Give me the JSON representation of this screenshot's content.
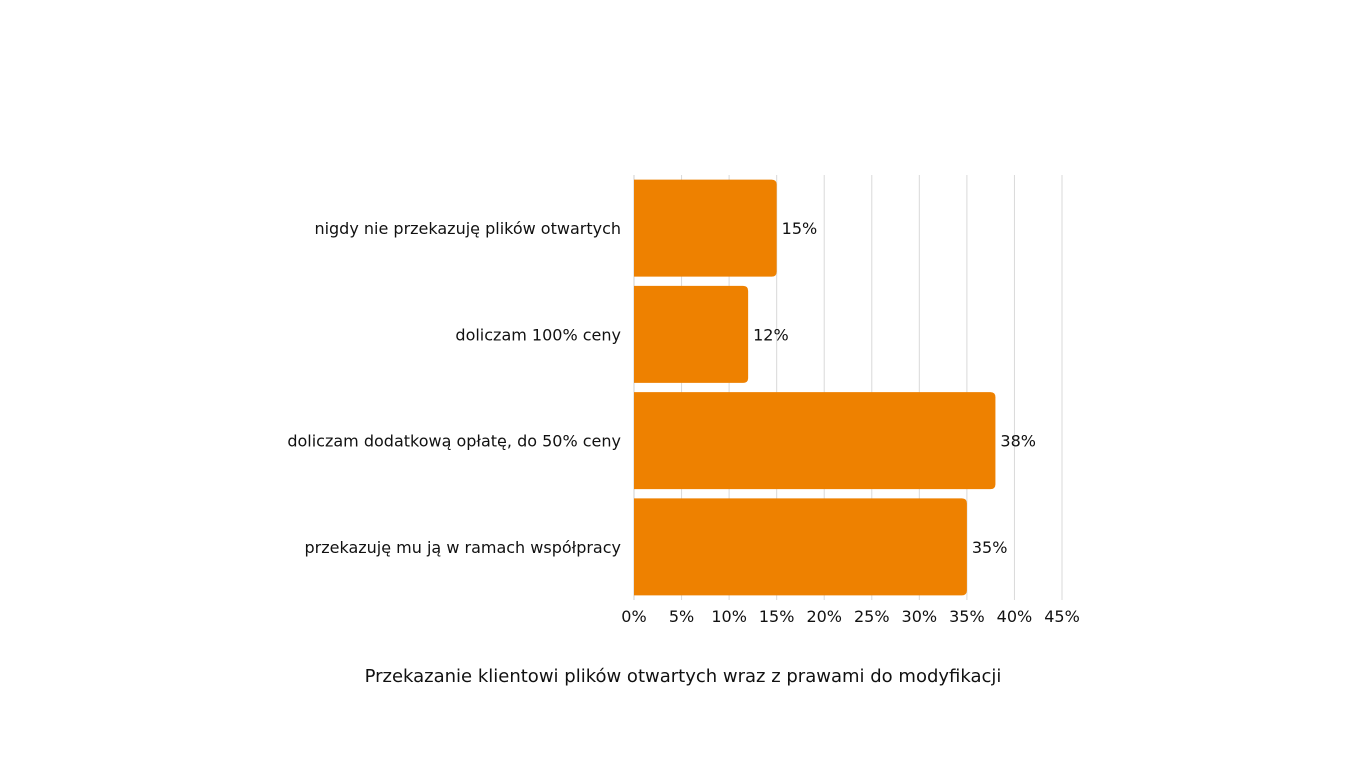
{
  "chart_data": {
    "type": "bar",
    "orientation": "horizontal",
    "title": "Przekazanie klientowi plików otwartych wraz z prawami do modyfikacji",
    "categories": [
      "nigdy nie przekazuję plików otwartych",
      "doliczam 100% ceny",
      "doliczam dodatkową opłatę, do 50% ceny",
      "przekazuję mu ją w ramach współpracy"
    ],
    "values": [
      15,
      12,
      38,
      35
    ],
    "value_labels": [
      "15%",
      "12%",
      "38%",
      "35%"
    ],
    "xlim": [
      0,
      45
    ],
    "x_ticks": [
      0,
      5,
      10,
      15,
      20,
      25,
      30,
      35,
      40,
      45
    ],
    "x_tick_labels": [
      "0%",
      "5%",
      "10%",
      "15%",
      "20%",
      "25%",
      "30%",
      "35%",
      "40%",
      "45%"
    ],
    "grid": true,
    "legend": "none",
    "bar_color": "#EE8100"
  }
}
